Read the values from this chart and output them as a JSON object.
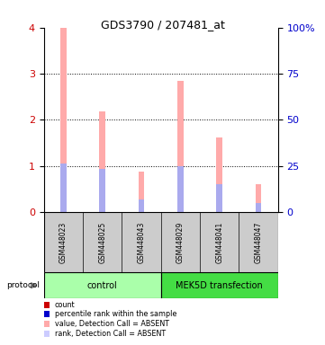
{
  "title": "GDS3790 / 207481_at",
  "samples": [
    "GSM448023",
    "GSM448025",
    "GSM448043",
    "GSM448029",
    "GSM448041",
    "GSM448047"
  ],
  "pink_bar_heights": [
    4.0,
    2.18,
    0.88,
    2.85,
    1.62,
    0.6
  ],
  "blue_bar_heights": [
    1.05,
    0.93,
    0.27,
    1.0,
    0.6,
    0.2
  ],
  "ylim_left": [
    0,
    4
  ],
  "ylim_right": [
    0,
    100
  ],
  "yticks_left": [
    0,
    1,
    2,
    3,
    4
  ],
  "yticks_right": [
    0,
    25,
    50,
    75,
    100
  ],
  "ytick_labels_right": [
    "0",
    "25",
    "50",
    "75",
    "100%"
  ],
  "protocol_colors": [
    "#aaffaa",
    "#44dd44"
  ],
  "bar_width": 0.15,
  "pink_color": "#ffaaaa",
  "blue_color": "#aaaaee",
  "left_axis_color": "#cc0000",
  "right_axis_color": "#0000cc",
  "bg_color": "#ffffff",
  "sample_box_color": "#cccccc",
  "legend_items": [
    {
      "color": "#cc0000",
      "label": "count"
    },
    {
      "color": "#0000cc",
      "label": "percentile rank within the sample"
    },
    {
      "color": "#ffaaaa",
      "label": "value, Detection Call = ABSENT"
    },
    {
      "color": "#ccccff",
      "label": "rank, Detection Call = ABSENT"
    }
  ]
}
